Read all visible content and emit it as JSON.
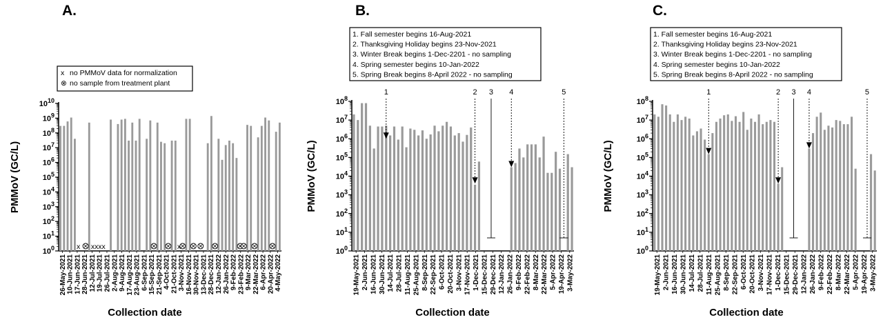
{
  "chart_data": [
    {
      "type": "bar",
      "panel_label": "A.",
      "ylabel": "PMMoV (GC/L)",
      "xlabel": "Collection date",
      "yscale": "log",
      "ylim": [
        1,
        10000000000
      ],
      "bar_color": "#9a9a9a",
      "x_tick_labels": [
        "26-May-2021",
        "10-Jun-2021",
        "17-Jun-2021",
        "28-Jun-2021",
        "12-Jul-2021",
        "19-Jul-2021",
        "26-Jul-2021",
        "2-Aug-2021",
        "9-Aug-2021",
        "17-Aug-2021",
        "23-Aug-2021",
        "6-Sep-2021",
        "15-Sep-2021",
        "21-Sep-2021",
        "4-Oct-2021",
        "21-Oct-2021",
        "3-Nov-2021",
        "16-Nov-2021",
        "30-Nov-2021",
        "13-Dec-2021",
        "28-Dec-2021",
        "12-Jan-2022",
        "26-Jan-2022",
        "9-Feb-2022",
        "23-Feb-2022",
        "9-Mar-2022",
        "22-Mar-2022",
        "6-Apr-2022",
        "20-Apr-2022",
        "4-May-2022"
      ],
      "values": [
        300000000,
        300000000,
        600000000,
        1100000000,
        40000000,
        null,
        null,
        null,
        500000000,
        null,
        null,
        null,
        null,
        null,
        800000000,
        null,
        400000000,
        800000000,
        900000000,
        30000000,
        500000000,
        30000000,
        900000000,
        null,
        40000000,
        700000000,
        null,
        500000000,
        25000000,
        20000000,
        null,
        30000000,
        30000000,
        null,
        null,
        900000000,
        900000000,
        null,
        null,
        null,
        null,
        20000000,
        1400000000,
        null,
        40000000,
        1500000,
        15000000,
        30000000,
        20000000,
        2000000,
        null,
        null,
        350000000,
        300000000,
        null,
        50000000,
        300000000,
        1100000000,
        700000000,
        null,
        120000000,
        500000000
      ],
      "markers": [
        {
          "index": 5,
          "symbol": "x"
        },
        {
          "index": 7,
          "symbol": "circle-x"
        },
        {
          "index": 9,
          "symbol": "x"
        },
        {
          "index": 10,
          "symbol": "x"
        },
        {
          "index": 11,
          "symbol": "x"
        },
        {
          "index": 12,
          "symbol": "x"
        },
        {
          "index": 26,
          "symbol": "circle-x"
        },
        {
          "index": 30,
          "symbol": "circle-x"
        },
        {
          "index": 33,
          "symbol": "x"
        },
        {
          "index": 34,
          "symbol": "circle-x"
        },
        {
          "index": 37,
          "symbol": "circle-x"
        },
        {
          "index": 39,
          "symbol": "circle-x"
        },
        {
          "index": 43,
          "symbol": "circle-x"
        },
        {
          "index": 50,
          "symbol": "circle-x"
        },
        {
          "index": 51,
          "symbol": "circle-x"
        },
        {
          "index": 54,
          "symbol": "circle-x"
        },
        {
          "index": 59,
          "symbol": "circle-x"
        }
      ],
      "legend": [
        {
          "symbol": "x",
          "label": "no PMMoV data for normalization"
        },
        {
          "symbol": "⊗",
          "label": "no sample from treatment plant"
        }
      ]
    },
    {
      "type": "bar",
      "panel_label": "B.",
      "ylabel": "PMMoV (GC/L)",
      "xlabel": "Collection date",
      "yscale": "log",
      "ylim": [
        1,
        100000000
      ],
      "bar_color": "#9a9a9a",
      "x_tick_labels": [
        "19-May-2021",
        "2-Jun-2021",
        "16-Jun-2021",
        "30-Jun-2021",
        "14-Jul-2021",
        "28-Jul-2021",
        "11-Aug-2021",
        "25-Aug-2021",
        "8-Sep-2021",
        "22-Sep-2021",
        "6-Oct-2021",
        "20-Oct-2021",
        "3-Nov-2021",
        "17-Nov-2021",
        "1-Dec-2021",
        "15-Dec-2021",
        "29-Dec-2021",
        "12-Jan-2022",
        "26-Jan-2022",
        "9-Feb-2022",
        "22-Feb-2022",
        "8-Mar-2022",
        "22-Mar-2022",
        "5-Apr-2022",
        "19-Apr-2022",
        "3-May-2022"
      ],
      "values": [
        20000000,
        10000000,
        80000000,
        80000000,
        5000000,
        300000,
        4500000,
        4500000,
        5000000,
        1500000,
        4500000,
        900000,
        4500000,
        350000,
        3500000,
        3000000,
        1500000,
        2800000,
        1000000,
        1700000,
        5000000,
        2500000,
        5000000,
        8000000,
        4500000,
        1500000,
        2000000,
        700000,
        1600000,
        4000000,
        3500,
        60000,
        null,
        null,
        null,
        null,
        null,
        null,
        null,
        30000,
        50000,
        300000,
        100000,
        500000,
        500000,
        500000,
        100000,
        1300000,
        15000,
        15000,
        200000,
        25000,
        null,
        150000,
        30000
      ],
      "events": [
        {
          "number": "1",
          "label": "1. Fall semester begins 16-Aug-2021",
          "bar_index": 8,
          "arrow_tip": "1000000",
          "dashed": true
        },
        {
          "number": "2",
          "label": "2. Thanksgiving Holiday begins 23-Nov-2021",
          "bar_index": 30,
          "arrow_tip": "4000",
          "dashed": true
        },
        {
          "number": "3",
          "label": "3. Winter Break begins 1-Dec-2201 - no sampling",
          "bar_index": 34,
          "end_value": 5,
          "dashed": false
        },
        {
          "number": "4",
          "label": "4. Spring semester begins 10-Jan-2022",
          "bar_index": 39,
          "arrow_tip": "30000",
          "dashed": true
        },
        {
          "number": "5",
          "label": "5. Spring Break begins 8-April 2022 - no sampling",
          "bar_index": 52,
          "end_value": 5,
          "dashed": true
        }
      ]
    },
    {
      "type": "bar",
      "panel_label": "C.",
      "ylabel": "PMMoV (GC/L)",
      "xlabel": "Collection date",
      "yscale": "log",
      "ylim": [
        1,
        100000000
      ],
      "bar_color": "#9a9a9a",
      "x_tick_labels": [
        "19-May-2021",
        "2-Jun-2021",
        "16-Jun-2021",
        "30-Jun-2021",
        "14-Jul-2021",
        "28-Jul-2021",
        "11-Aug-2021",
        "25-Aug-2021",
        "8-Sep-2021",
        "22-Sep-2021",
        "6-Oct-2021",
        "20-Oct-2021",
        "3-Nov-2021",
        "17-Nov-2021",
        "1-Dec-2021",
        "15-Dec-2021",
        "29-Dec-2021",
        "12-Jan-2022",
        "26-Jan-2022",
        "9-Feb-2022",
        "22-Feb-2022",
        "8-Mar-2022",
        "22-Mar-2022",
        "5-Apr-2022",
        "19-Apr-2022",
        "3-May-2022"
      ],
      "values": [
        20000000,
        15000000,
        70000000,
        60000000,
        20000000,
        8000000,
        20000000,
        10000000,
        15000000,
        12000000,
        1500000,
        2500000,
        3500000,
        900000,
        150000,
        2000000,
        8000000,
        12000000,
        18000000,
        20000000,
        9000000,
        16000000,
        8000000,
        27000000,
        3000000,
        12000000,
        8000000,
        20000000,
        6000000,
        8000000,
        10000000,
        8000000,
        4000,
        30000,
        null,
        null,
        null,
        null,
        null,
        null,
        300000,
        2000000,
        15000000,
        25000000,
        3000000,
        5000000,
        4000000,
        10000000,
        9000000,
        6000000,
        6000000,
        15000000,
        25000,
        null,
        null,
        null,
        150000,
        20000
      ],
      "events": [
        {
          "number": "1",
          "label": "1. Fall semester begins 16-Aug-2021",
          "bar_index": 14,
          "arrow_tip": "150000",
          "dashed": true
        },
        {
          "number": "2",
          "label": "2. Thanksgiving Holiday begins 23-Nov-2021",
          "bar_index": 32,
          "arrow_tip": "4000",
          "dashed": true
        },
        {
          "number": "3",
          "label": "3. Winter Break begins 1-Dec-2201 - no sampling",
          "bar_index": 36,
          "end_value": 5,
          "dashed": false
        },
        {
          "number": "4",
          "label": "4. Spring semester begins 10-Jan-2022",
          "bar_index": 40,
          "arrow_tip": "300000",
          "dashed": true
        },
        {
          "number": "5",
          "label": "5. Spring Break begins 8-April 2022 - no sampling",
          "bar_index": 55,
          "end_value": 5,
          "dashed": true
        }
      ]
    }
  ]
}
